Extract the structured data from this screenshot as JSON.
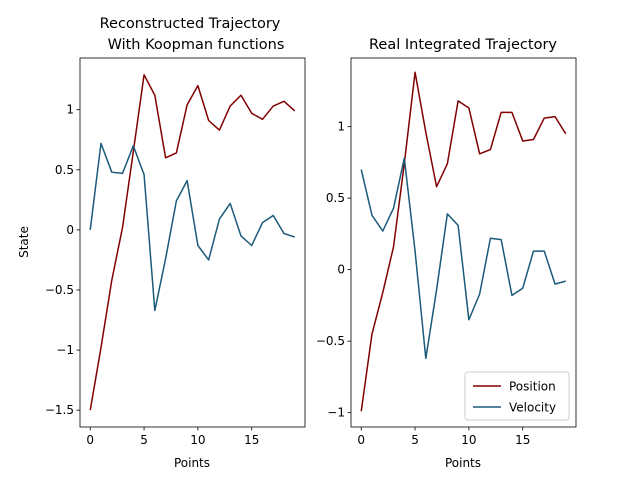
{
  "chart_data": [
    {
      "type": "line",
      "title_lines": [
        "Reconstructed Trajectory",
        "With Koopman functions"
      ],
      "xlabel": "Points",
      "ylabel": "State",
      "xlim": [
        -0.95,
        19.95
      ],
      "ylim": [
        -1.64,
        1.43
      ],
      "xticks": [
        0,
        5,
        10,
        15
      ],
      "yticks": [
        -1.5,
        -1.0,
        -0.5,
        0.0,
        0.5,
        1.0
      ],
      "x": [
        0,
        1,
        2,
        3,
        4,
        5,
        6,
        7,
        8,
        9,
        10,
        11,
        12,
        13,
        14,
        15,
        16,
        17,
        18,
        19
      ],
      "series": [
        {
          "name": "Position",
          "color": "#800000",
          "values": [
            -1.5,
            -0.98,
            -0.42,
            0.02,
            0.65,
            1.29,
            1.12,
            0.6,
            0.64,
            1.04,
            1.2,
            0.91,
            0.83,
            1.03,
            1.12,
            0.97,
            0.92,
            1.03,
            1.07,
            0.99
          ]
        },
        {
          "name": "Velocity",
          "color": "#1a5a7a",
          "values": [
            0.0,
            0.72,
            0.48,
            0.47,
            0.7,
            0.46,
            -0.67,
            -0.24,
            0.24,
            0.41,
            -0.13,
            -0.25,
            0.09,
            0.22,
            -0.05,
            -0.13,
            0.06,
            0.12,
            -0.03,
            -0.06
          ]
        }
      ]
    },
    {
      "type": "line",
      "title_lines": [
        "Real Integrated Trajectory"
      ],
      "xlabel": "Points",
      "ylabel": "",
      "xlim": [
        -0.95,
        19.95
      ],
      "ylim": [
        -1.1,
        1.48
      ],
      "xticks": [
        0,
        5,
        10,
        15
      ],
      "yticks": [
        -1.0,
        -0.5,
        0.0,
        0.5,
        1.0
      ],
      "legend": "lower-right",
      "x": [
        0,
        1,
        2,
        3,
        4,
        5,
        6,
        7,
        8,
        9,
        10,
        11,
        12,
        13,
        14,
        15,
        16,
        17,
        18,
        19
      ],
      "series": [
        {
          "name": "Position",
          "color": "#800000",
          "values": [
            -0.99,
            -0.45,
            -0.16,
            0.16,
            0.74,
            1.38,
            0.96,
            0.58,
            0.74,
            1.18,
            1.13,
            0.81,
            0.84,
            1.1,
            1.1,
            0.9,
            0.91,
            1.06,
            1.07,
            0.95
          ]
        },
        {
          "name": "Velocity",
          "color": "#1a5a7a",
          "values": [
            0.7,
            0.38,
            0.27,
            0.43,
            0.78,
            0.13,
            -0.62,
            -0.14,
            0.39,
            0.31,
            -0.35,
            -0.17,
            0.22,
            0.21,
            -0.18,
            -0.13,
            0.13,
            0.13,
            -0.1,
            -0.08
          ]
        }
      ]
    }
  ]
}
